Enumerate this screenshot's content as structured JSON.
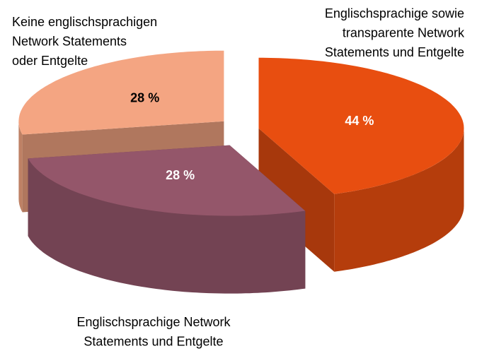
{
  "chart_data": {
    "type": "pie3d",
    "categories": [
      "Englischsprachige sowie\ntransparente Network\nStatements und Entgelte",
      "Englischsprachige Network\nStatements und Entgelte",
      "Keine englischsprachigen\nNetwork Statements\noder Entgelte"
    ],
    "values": [
      44,
      28,
      28
    ],
    "value_labels": [
      "44 %",
      "28 %",
      "28 %"
    ],
    "colors": [
      "#e84e10",
      "#94566a",
      "#f4a582"
    ]
  }
}
